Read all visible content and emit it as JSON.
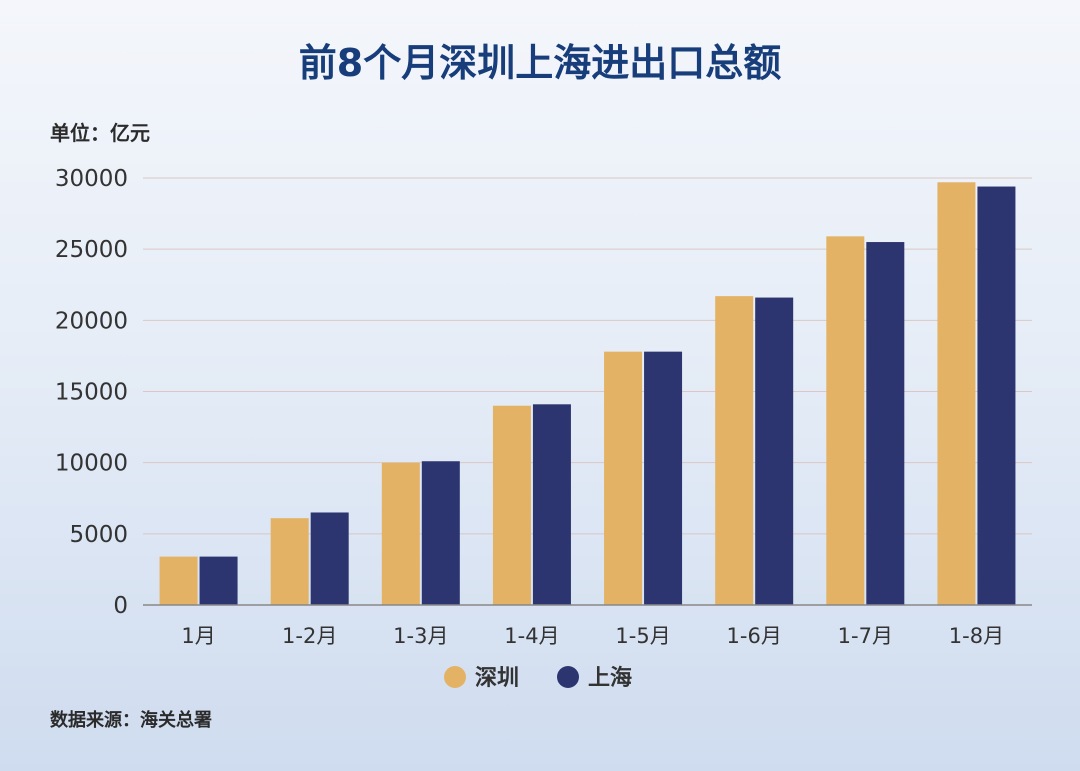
{
  "chart_data": {
    "type": "bar",
    "title": "前8个月深圳上海进出口总额",
    "unit_label": "单位：亿元",
    "categories": [
      "1月",
      "1-2月",
      "1-3月",
      "1-4月",
      "1-5月",
      "1-6月",
      "1-7月",
      "1-8月"
    ],
    "series": [
      {
        "name": "深圳",
        "color": "#e3b264",
        "values": [
          3400,
          6100,
          10000,
          14000,
          17800,
          21700,
          25900,
          29700
        ]
      },
      {
        "name": "上海",
        "color": "#2c356f",
        "values": [
          3400,
          6500,
          10100,
          14100,
          17800,
          21600,
          25500,
          29400
        ]
      }
    ],
    "ylim": [
      0,
      30000
    ],
    "yticks": [
      0,
      5000,
      10000,
      15000,
      20000,
      25000,
      30000
    ],
    "grid": true,
    "legend": "bottom-center",
    "source": "数据来源：海关总署"
  }
}
